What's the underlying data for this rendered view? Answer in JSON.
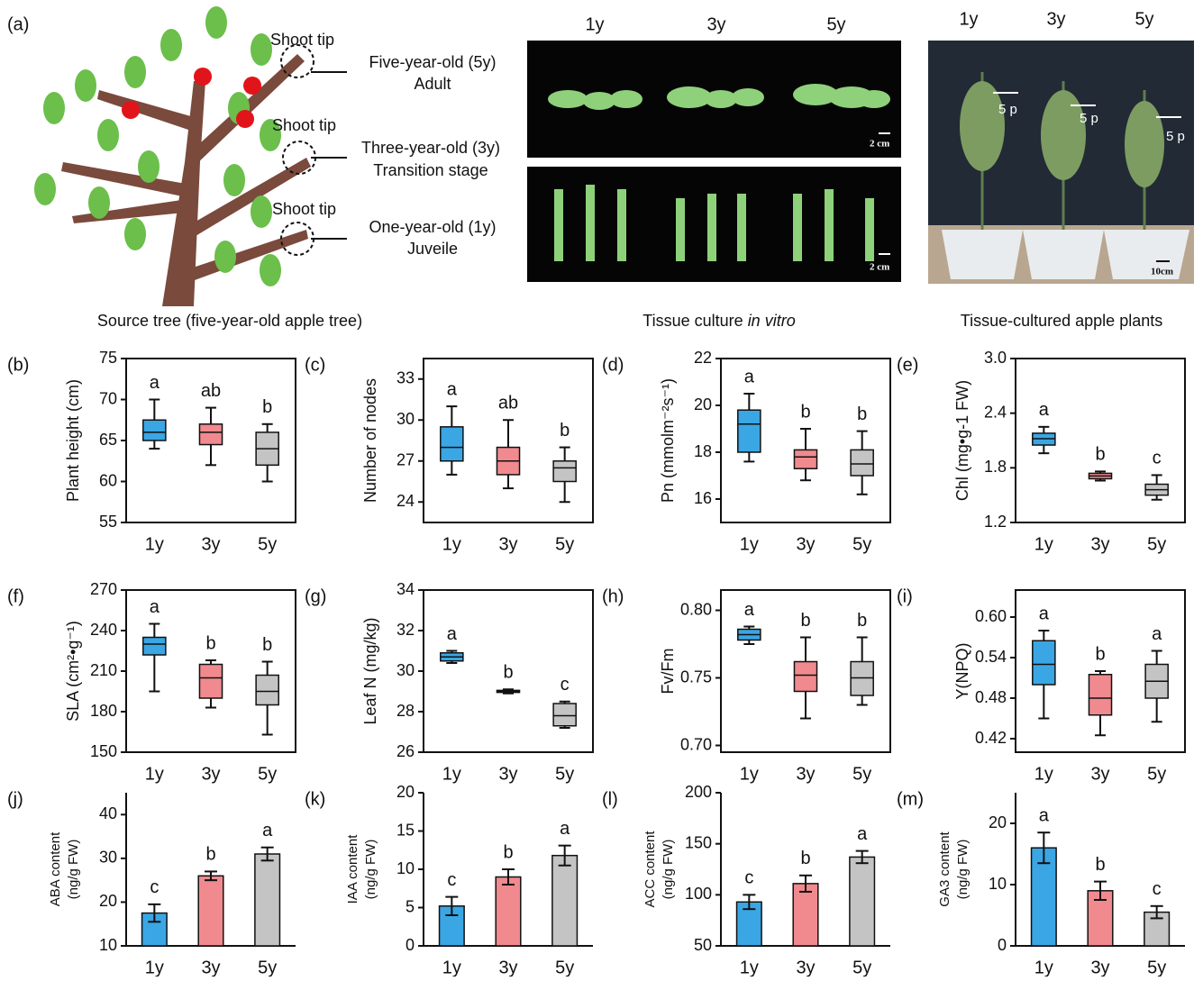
{
  "panel_a": {
    "label": "(a)",
    "shoot_tip": [
      "Shoot tip",
      "Shoot tip",
      "Shoot tip"
    ],
    "stages": [
      [
        "Five-year-old  (5y)",
        "Adult"
      ],
      [
        "Three-year-old (3y)",
        "Transition stage"
      ],
      [
        "One-year-old (1y)",
        "Juveile"
      ]
    ],
    "culture_ages": [
      "1y",
      "3y",
      "5y"
    ],
    "plant_ages": [
      "1y",
      "3y",
      "5y"
    ],
    "arrows": [
      "5 p",
      "5 p",
      "5 p"
    ],
    "scale_bars": [
      "2 cm",
      "2 cm",
      "10cm"
    ],
    "captions": {
      "tree": "Source tree (five-year-old apple tree)",
      "culture": "Tissue culture ",
      "culture_italic": "in vitro",
      "plants": "Tissue-cultured apple plants"
    }
  },
  "chart_data": [
    {
      "type": "box",
      "panel": "(b)",
      "ylabel": "Plant height (cm)",
      "categories": [
        "1y",
        "3y",
        "5y"
      ],
      "colors": [
        "#3aa6e4",
        "#f08a8f",
        "#c4c4c4"
      ],
      "ylim": [
        55,
        75
      ],
      "yticks": [
        55,
        60,
        65,
        70,
        75
      ],
      "letters": [
        "a",
        "ab",
        "b"
      ],
      "boxes": [
        {
          "min": 64,
          "q1": 65,
          "median": 66,
          "q3": 67.5,
          "max": 70
        },
        {
          "min": 62,
          "q1": 64.5,
          "median": 66,
          "q3": 67,
          "max": 69
        },
        {
          "min": 60,
          "q1": 62,
          "median": 64,
          "q3": 66,
          "max": 67
        }
      ]
    },
    {
      "type": "box",
      "panel": "(c)",
      "ylabel": "Number of nodes",
      "categories": [
        "1y",
        "3y",
        "5y"
      ],
      "colors": [
        "#3aa6e4",
        "#f08a8f",
        "#c4c4c4"
      ],
      "ylim": [
        22.5,
        34.5
      ],
      "yticks": [
        24,
        27,
        30,
        33
      ],
      "letters": [
        "a",
        "ab",
        "b"
      ],
      "boxes": [
        {
          "min": 26,
          "q1": 27,
          "median": 28,
          "q3": 29.5,
          "max": 31
        },
        {
          "min": 25,
          "q1": 26,
          "median": 27,
          "q3": 28,
          "max": 30
        },
        {
          "min": 24,
          "q1": 25.5,
          "median": 26.5,
          "q3": 27,
          "max": 28
        }
      ]
    },
    {
      "type": "box",
      "panel": "(d)",
      "ylabel": "Pn (mmolm⁻²s⁻¹)",
      "categories": [
        "1y",
        "3y",
        "5y"
      ],
      "colors": [
        "#3aa6e4",
        "#f08a8f",
        "#c4c4c4"
      ],
      "ylim": [
        15,
        22
      ],
      "yticks": [
        16,
        18,
        20,
        22
      ],
      "letters": [
        "a",
        "b",
        "b"
      ],
      "boxes": [
        {
          "min": 17.6,
          "q1": 18,
          "median": 19.2,
          "q3": 19.8,
          "max": 20.5
        },
        {
          "min": 16.8,
          "q1": 17.3,
          "median": 17.8,
          "q3": 18.1,
          "max": 19
        },
        {
          "min": 16.2,
          "q1": 17,
          "median": 17.5,
          "q3": 18.1,
          "max": 18.9
        }
      ]
    },
    {
      "type": "box",
      "panel": "(e)",
      "ylabel": "Chl  (mg•g-1 FW)",
      "categories": [
        "1y",
        "3y",
        "5y"
      ],
      "colors": [
        "#3aa6e4",
        "#f08a8f",
        "#c4c4c4"
      ],
      "ylim": [
        1.2,
        3
      ],
      "yticks": [
        1.2,
        1.8,
        2.4,
        {
          "value": 3,
          "label": "3.0"
        }
      ],
      "letters": [
        "a",
        "b",
        "c"
      ],
      "boxes": [
        {
          "min": 1.96,
          "q1": 2.05,
          "median": 2.12,
          "q3": 2.18,
          "max": 2.25
        },
        {
          "min": 1.66,
          "q1": 1.68,
          "median": 1.71,
          "q3": 1.74,
          "max": 1.76
        },
        {
          "min": 1.45,
          "q1": 1.5,
          "median": 1.56,
          "q3": 1.62,
          "max": 1.72
        }
      ]
    },
    {
      "type": "box",
      "panel": "(f)",
      "ylabel": "SLA (cm²•g⁻¹)",
      "categories": [
        "1y",
        "3y",
        "5y"
      ],
      "colors": [
        "#3aa6e4",
        "#f08a8f",
        "#c4c4c4"
      ],
      "ylim": [
        150,
        270
      ],
      "yticks": [
        150,
        180,
        210,
        240,
        270
      ],
      "letters": [
        "a",
        "b",
        "b"
      ],
      "boxes": [
        {
          "min": 195,
          "q1": 222,
          "median": 230,
          "q3": 235,
          "max": 245
        },
        {
          "min": 183,
          "q1": 190,
          "median": 205,
          "q3": 215,
          "max": 218
        },
        {
          "min": 163,
          "q1": 185,
          "median": 195,
          "q3": 207,
          "max": 217
        }
      ]
    },
    {
      "type": "box",
      "panel": "(g)",
      "ylabel": "Leaf N (mg/kg)",
      "categories": [
        "1y",
        "3y",
        "5y"
      ],
      "colors": [
        "#3aa6e4",
        "#f08a8f",
        "#c4c4c4"
      ],
      "ylim": [
        26,
        34
      ],
      "yticks": [
        26,
        28,
        30,
        32,
        34
      ],
      "letters": [
        "a",
        "b",
        "c"
      ],
      "boxes": [
        {
          "min": 30.4,
          "q1": 30.5,
          "median": 30.7,
          "q3": 30.9,
          "max": 31
        },
        {
          "min": 28.9,
          "q1": 28.95,
          "median": 29,
          "q3": 29.05,
          "max": 29.1
        },
        {
          "min": 27.2,
          "q1": 27.3,
          "median": 27.8,
          "q3": 28.4,
          "max": 28.5
        }
      ]
    },
    {
      "type": "box",
      "panel": "(h)",
      "ylabel": "Fv/Fm",
      "categories": [
        "1y",
        "3y",
        "5y"
      ],
      "colors": [
        "#3aa6e4",
        "#f08a8f",
        "#c4c4c4"
      ],
      "ylim": [
        0.695,
        0.815
      ],
      "yticks": [
        {
          "value": 0.7,
          "label": "0.70"
        },
        0.75,
        {
          "value": 0.8,
          "label": "0.80"
        }
      ],
      "letters": [
        "a",
        "b",
        "b"
      ],
      "boxes": [
        {
          "min": 0.775,
          "q1": 0.778,
          "median": 0.782,
          "q3": 0.786,
          "max": 0.788
        },
        {
          "min": 0.72,
          "q1": 0.74,
          "median": 0.752,
          "q3": 0.762,
          "max": 0.78
        },
        {
          "min": 0.73,
          "q1": 0.737,
          "median": 0.75,
          "q3": 0.762,
          "max": 0.78
        }
      ]
    },
    {
      "type": "box",
      "panel": "(i)",
      "ylabel": "Y(NPQ)",
      "categories": [
        "1y",
        "3y",
        "5y"
      ],
      "colors": [
        "#3aa6e4",
        "#f08a8f",
        "#c4c4c4"
      ],
      "ylim": [
        0.4,
        0.64
      ],
      "yticks": [
        0.42,
        0.48,
        0.54,
        {
          "value": 0.6,
          "label": "0.60"
        }
      ],
      "letters": [
        "a",
        "b",
        "a"
      ],
      "boxes": [
        {
          "min": 0.45,
          "q1": 0.5,
          "median": 0.53,
          "q3": 0.565,
          "max": 0.58
        },
        {
          "min": 0.425,
          "q1": 0.455,
          "median": 0.48,
          "q3": 0.515,
          "max": 0.52
        },
        {
          "min": 0.445,
          "q1": 0.48,
          "median": 0.505,
          "q3": 0.53,
          "max": 0.55
        }
      ]
    },
    {
      "type": "bar",
      "panel": "(j)",
      "ylabel": [
        "ABA content",
        "(ng/g FW)"
      ],
      "categories": [
        "1y",
        "3y",
        "5y"
      ],
      "colors": [
        "#3aa6e4",
        "#f08a8f",
        "#c4c4c4"
      ],
      "ylim": [
        10,
        45
      ],
      "yticks": [
        10,
        20,
        30,
        40
      ],
      "letters": [
        "c",
        "b",
        "a"
      ],
      "values": [
        17.5,
        26,
        31
      ],
      "errors": [
        2,
        1,
        1.5
      ]
    },
    {
      "type": "bar",
      "panel": "(k)",
      "ylabel": [
        "IAA content",
        "(ng/g FW)"
      ],
      "categories": [
        "1y",
        "3y",
        "5y"
      ],
      "colors": [
        "#3aa6e4",
        "#f08a8f",
        "#c4c4c4"
      ],
      "ylim": [
        0,
        20
      ],
      "yticks": [
        0,
        5,
        10,
        15,
        20
      ],
      "letters": [
        "c",
        "b",
        "a"
      ],
      "values": [
        5.2,
        9,
        11.8
      ],
      "errors": [
        1.2,
        1,
        1.3
      ]
    },
    {
      "type": "bar",
      "panel": "(l)",
      "ylabel": [
        "ACC content",
        "(ng/g FW)"
      ],
      "categories": [
        "1y",
        "3y",
        "5y"
      ],
      "colors": [
        "#3aa6e4",
        "#f08a8f",
        "#c4c4c4"
      ],
      "ylim": [
        50,
        200
      ],
      "yticks": [
        50,
        100,
        150,
        200
      ],
      "letters": [
        "c",
        "b",
        "a"
      ],
      "values": [
        93,
        111,
        137
      ],
      "errors": [
        7,
        8,
        6
      ]
    },
    {
      "type": "bar",
      "panel": "(m)",
      "ylabel": [
        "GA3 content",
        "(ng/g FW)"
      ],
      "categories": [
        "1y",
        "3y",
        "5y"
      ],
      "colors": [
        "#3aa6e4",
        "#f08a8f",
        "#c4c4c4"
      ],
      "ylim": [
        0,
        25
      ],
      "yticks": [
        0,
        10,
        20
      ],
      "letters": [
        "a",
        "b",
        "c"
      ],
      "values": [
        16,
        9,
        5.5
      ],
      "errors": [
        2.5,
        1.5,
        1
      ]
    }
  ]
}
